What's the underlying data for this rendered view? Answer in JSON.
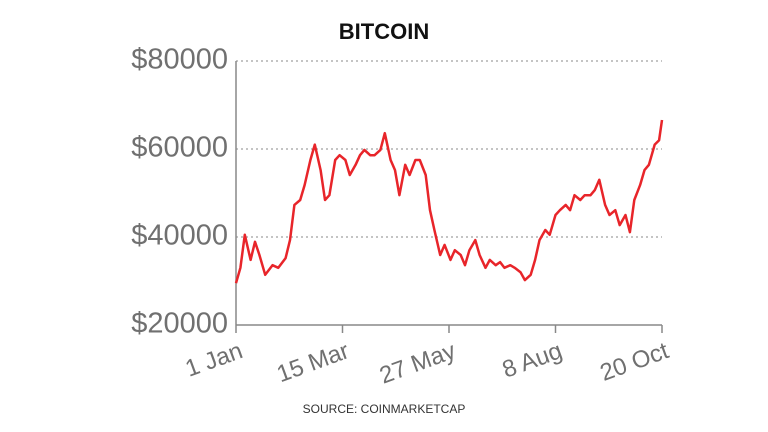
{
  "chart_data": {
    "type": "line",
    "title": "BITCOIN",
    "source": "SOURCE: COINMARKETCAP",
    "x": [
      1,
      4,
      7,
      11,
      14,
      17,
      21,
      26,
      30,
      35,
      38,
      41,
      45,
      48,
      52,
      55,
      59,
      62,
      65,
      69,
      72,
      76,
      79,
      83,
      86,
      89,
      93,
      96,
      100,
      103,
      107,
      110,
      113,
      117,
      120,
      124,
      127,
      131,
      134,
      137,
      141,
      144,
      148,
      151,
      155,
      158,
      161,
      165,
      168,
      172,
      175,
      179,
      182,
      185,
      189,
      192,
      196,
      199,
      203,
      206,
      209,
      213,
      216,
      220,
      223,
      227,
      230,
      233,
      237,
      240,
      244,
      247,
      250,
      254,
      257,
      261,
      264,
      268,
      271,
      274,
      278,
      281,
      284,
      288,
      291,
      293
    ],
    "series": [
      {
        "color": "#e8252a",
        "values": [
          29500,
          33000,
          40500,
          34800,
          38900,
          36000,
          31400,
          33600,
          33000,
          35200,
          39300,
          47300,
          48400,
          51800,
          57500,
          61000,
          55200,
          48400,
          49500,
          57500,
          58600,
          57500,
          54100,
          56400,
          58600,
          59800,
          58600,
          58600,
          59800,
          63600,
          57500,
          55200,
          49500,
          56400,
          54100,
          57500,
          57500,
          54100,
          46100,
          41600,
          35900,
          38200,
          34800,
          37000,
          35900,
          33600,
          37000,
          39300,
          35900,
          33000,
          34800,
          33600,
          34300,
          33000,
          33600,
          33000,
          32000,
          30200,
          31400,
          34800,
          39300,
          41600,
          40500,
          45000,
          46100,
          47300,
          46100,
          49500,
          48400,
          49500,
          49500,
          50700,
          53000,
          47300,
          45000,
          46100,
          42700,
          45000,
          41100,
          48400,
          51800,
          55200,
          56400,
          61000,
          62000,
          66600
        ]
      }
    ],
    "xlim": [
      1,
      293
    ],
    "xticks": [
      {
        "value": 1,
        "label": "1 Jan"
      },
      {
        "value": 74,
        "label": "15 Mar"
      },
      {
        "value": 147,
        "label": "27 May"
      },
      {
        "value": 220,
        "label": "8 Aug"
      },
      {
        "value": 293,
        "label": "20 Oct"
      }
    ],
    "ylim": [
      20000,
      80000
    ],
    "yticks": [
      {
        "value": 20000,
        "label": "$20000"
      },
      {
        "value": 40000,
        "label": "$40000"
      },
      {
        "value": 60000,
        "label": "$60000"
      },
      {
        "value": 80000,
        "label": "$80000"
      }
    ],
    "grid": true
  }
}
